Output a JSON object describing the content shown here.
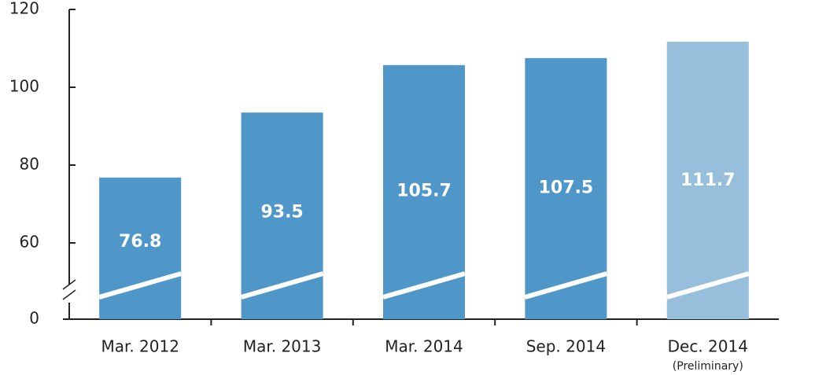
{
  "chart_data": {
    "type": "bar",
    "categories": [
      "Mar. 2012",
      "Mar. 2013",
      "Mar. 2014",
      "Sep. 2014",
      "Dec. 2014"
    ],
    "values": [
      76.8,
      93.5,
      105.7,
      107.5,
      111.7
    ],
    "colors": [
      "#4f96c9",
      "#4f96c9",
      "#4f96c9",
      "#4f96c9",
      "#97bedb"
    ],
    "annotation": "(Preliminary)",
    "ylim": [
      0,
      120
    ],
    "yticks": [
      0,
      60,
      80,
      100,
      120
    ],
    "axis_break": true
  }
}
